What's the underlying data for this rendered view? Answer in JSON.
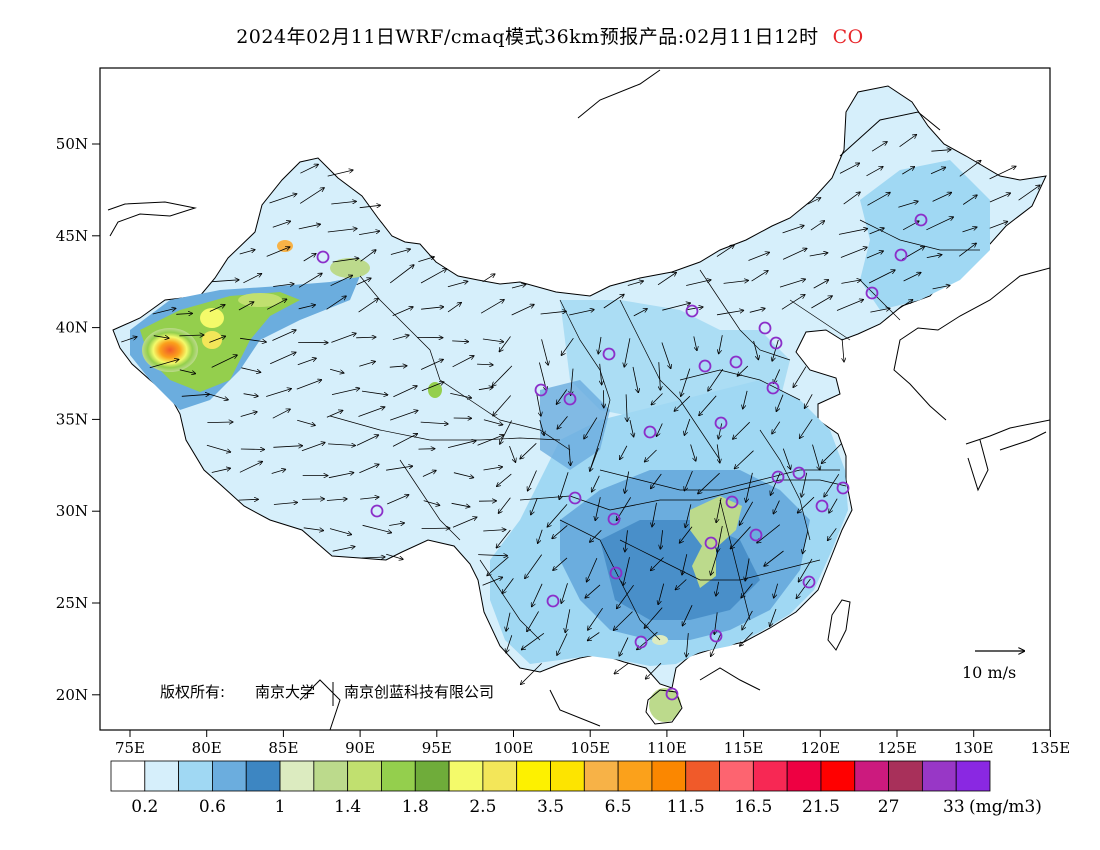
{
  "title": {
    "text": "2024年02月11日WRF/cmaq模式36km预报产品:02月11日12时",
    "species": "CO",
    "species_color": "#e8262a"
  },
  "axes": {
    "lat_labels": [
      "50N",
      "45N",
      "40N",
      "35N",
      "30N",
      "25N",
      "20N"
    ],
    "lon_labels": [
      "75E",
      "80E",
      "85E",
      "90E",
      "95E",
      "100E",
      "105E",
      "110E",
      "115E",
      "120E",
      "125E",
      "130E",
      "135E"
    ]
  },
  "colorbar": {
    "colors": [
      "#ffffff",
      "#d6effb",
      "#a0d8f3",
      "#6badde",
      "#3d86c2",
      "#dcebc0",
      "#bcda8c",
      "#c1e06f",
      "#94cf4d",
      "#6fac3a",
      "#f4fa6a",
      "#f3e659",
      "#fdf100",
      "#fde400",
      "#f7b247",
      "#fba11b",
      "#fb8700",
      "#f05a2a",
      "#fd6470",
      "#f72854",
      "#ee0042",
      "#ff0000",
      "#cc1a7e",
      "#a8305a",
      "#9837c6",
      "#8a28e2"
    ],
    "labels": [
      "0.2",
      "0.6",
      "1",
      "1.4",
      "1.8",
      "2.5",
      "3.5",
      "6.5",
      "11.5",
      "16.5",
      "21.5",
      "27",
      "33"
    ],
    "unit": "(mg/m3)"
  },
  "copyright": {
    "prefix": "版权所有:",
    "org1": "南京大学",
    "org2": "南京创蓝科技有限公司"
  },
  "wind_scale": {
    "label": "10 m/s"
  },
  "icons": {
    "station_marker": "circle-icon",
    "wind_vector": "arrow-icon"
  },
  "colors": {
    "station_marker": "#8b2fc9",
    "border": "#000000"
  }
}
